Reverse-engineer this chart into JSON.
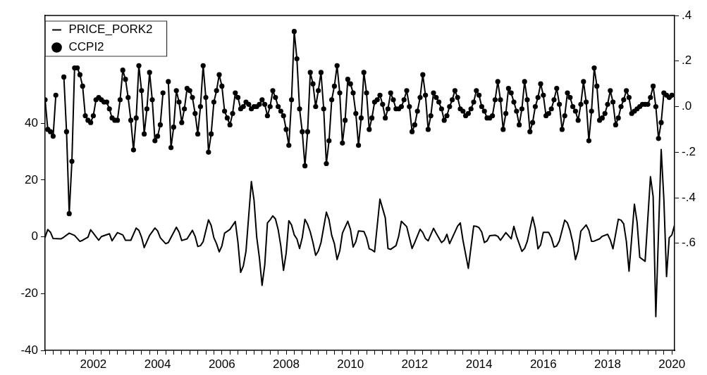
{
  "chart_data": {
    "type": "line",
    "x": [
      "2001-01",
      "2001-02",
      "2001-03",
      "2001-04",
      "2001-05",
      "2001-06",
      "2001-07",
      "2001-08",
      "2001-09",
      "2001-10",
      "2001-11",
      "2001-12",
      "2002-01",
      "2002-02",
      "2002-03",
      "2002-04",
      "2002-05",
      "2002-06",
      "2002-07",
      "2002-08",
      "2002-09",
      "2002-10",
      "2002-11",
      "2002-12",
      "2003-01",
      "2003-02",
      "2003-03",
      "2003-04",
      "2003-05",
      "2003-06",
      "2003-07",
      "2003-08",
      "2003-09",
      "2003-10",
      "2003-11",
      "2003-12",
      "2004-01",
      "2004-02",
      "2004-03",
      "2004-04",
      "2004-05",
      "2004-06",
      "2004-07",
      "2004-08",
      "2004-09",
      "2004-10",
      "2004-11",
      "2004-12",
      "2005-01",
      "2005-02",
      "2005-03",
      "2005-04",
      "2005-05",
      "2005-06",
      "2005-07",
      "2005-08",
      "2005-09",
      "2005-10",
      "2005-11",
      "2005-12",
      "2006-01",
      "2006-02",
      "2006-03",
      "2006-04",
      "2006-05",
      "2006-06",
      "2006-07",
      "2006-08",
      "2006-09",
      "2006-10",
      "2006-11",
      "2006-12",
      "2007-01",
      "2007-02",
      "2007-03",
      "2007-04",
      "2007-05",
      "2007-06",
      "2007-07",
      "2007-08",
      "2007-09",
      "2007-10",
      "2007-11",
      "2007-12",
      "2008-01",
      "2008-02",
      "2008-03",
      "2008-04",
      "2008-05",
      "2008-06",
      "2008-07",
      "2008-08",
      "2008-09",
      "2008-10",
      "2008-11",
      "2008-12",
      "2009-01",
      "2009-02",
      "2009-03",
      "2009-04",
      "2009-05",
      "2009-06",
      "2009-07",
      "2009-08",
      "2009-09",
      "2009-10",
      "2009-11",
      "2009-12",
      "2010-01",
      "2010-02",
      "2010-03",
      "2010-04",
      "2010-05",
      "2010-06",
      "2010-07",
      "2010-08",
      "2010-09",
      "2010-10",
      "2010-11",
      "2010-12",
      "2011-01",
      "2011-02",
      "2011-03",
      "2011-04",
      "2011-05",
      "2011-06",
      "2011-07",
      "2011-08",
      "2011-09",
      "2011-10",
      "2011-11",
      "2011-12",
      "2012-01",
      "2012-02",
      "2012-03",
      "2012-04",
      "2012-05",
      "2012-06",
      "2012-07",
      "2012-08",
      "2012-09",
      "2012-10",
      "2012-11",
      "2012-12",
      "2013-01",
      "2013-02",
      "2013-03",
      "2013-04",
      "2013-05",
      "2013-06",
      "2013-07",
      "2013-08",
      "2013-09",
      "2013-10",
      "2013-11",
      "2013-12",
      "2014-01",
      "2014-02",
      "2014-03",
      "2014-04",
      "2014-05",
      "2014-06",
      "2014-07",
      "2014-08",
      "2014-09",
      "2014-10",
      "2014-11",
      "2014-12",
      "2015-01",
      "2015-02",
      "2015-03",
      "2015-04",
      "2015-05",
      "2015-06",
      "2015-07",
      "2015-08",
      "2015-09",
      "2015-10",
      "2015-11",
      "2015-12",
      "2016-01",
      "2016-02",
      "2016-03",
      "2016-04",
      "2016-05",
      "2016-06",
      "2016-07",
      "2016-08",
      "2016-09",
      "2016-10",
      "2016-11",
      "2016-12",
      "2017-01",
      "2017-02",
      "2017-03",
      "2017-04",
      "2017-05",
      "2017-06",
      "2017-07",
      "2017-08",
      "2017-09",
      "2017-10",
      "2017-11",
      "2017-12",
      "2018-01",
      "2018-02",
      "2018-03",
      "2018-04",
      "2018-05",
      "2018-06",
      "2018-07",
      "2018-08",
      "2018-09",
      "2018-10",
      "2018-11",
      "2018-12",
      "2019-01",
      "2019-02",
      "2019-03",
      "2019-04",
      "2019-05",
      "2019-06",
      "2019-07",
      "2019-08",
      "2019-09",
      "2019-10",
      "2019-11",
      "2019-12",
      "2020-01",
      "2020-02",
      "2020-03",
      "2020-04",
      "2020-05",
      "2020-06",
      "2020-07"
    ],
    "series": [
      {
        "name": "PRICE_PORK2",
        "color": "#000000",
        "marker": "none",
        "x": [
          "2001-01",
          "2001-02",
          "2001-03",
          "2001-04",
          "2001-07",
          "2001-08",
          "2001-10",
          "2001-12",
          "2002-02",
          "2002-03",
          "2002-05",
          "2002-06",
          "2002-07",
          "2002-09",
          "2002-10",
          "2003-01",
          "2003-02",
          "2003-04",
          "2003-06",
          "2003-07",
          "2003-09",
          "2003-11",
          "2003-12",
          "2004-01",
          "2004-02",
          "2004-04",
          "2004-06",
          "2004-07",
          "2004-08",
          "2004-10",
          "2004-11",
          "2005-02",
          "2005-03",
          "2005-04",
          "2005-06",
          "2005-08",
          "2005-09",
          "2005-10",
          "2005-11",
          "2005-12",
          "2006-02",
          "2006-03",
          "2006-04",
          "2006-05",
          "2006-06",
          "2006-07",
          "2006-08",
          "2006-10",
          "2006-12",
          "2007-01",
          "2007-02",
          "2007-03",
          "2007-04",
          "2007-06",
          "2007-07",
          "2007-08",
          "2007-09",
          "2007-10",
          "2007-11",
          "2007-12",
          "2008-01",
          "2008-02",
          "2008-03",
          "2008-04",
          "2008-05",
          "2008-06",
          "2008-07",
          "2008-08",
          "2008-09",
          "2008-10",
          "2008-11",
          "2008-12",
          "2009-01",
          "2009-02",
          "2009-03",
          "2009-04",
          "2009-05",
          "2009-06",
          "2009-07",
          "2009-08",
          "2009-10",
          "2009-11",
          "2009-12",
          "2010-01",
          "2010-02",
          "2010-03",
          "2010-04",
          "2010-06",
          "2010-07",
          "2010-08",
          "2010-09",
          "2010-10",
          "2010-12",
          "2011-01",
          "2011-02",
          "2011-03",
          "2011-04",
          "2011-06",
          "2011-08",
          "2011-09",
          "2011-10",
          "2011-12",
          "2012-01",
          "2012-02",
          "2012-04",
          "2012-05",
          "2012-06",
          "2012-07",
          "2012-09",
          "2012-10",
          "2012-11",
          "2012-12",
          "2013-02",
          "2013-03",
          "2013-05",
          "2013-06",
          "2013-07",
          "2013-08",
          "2013-11",
          "2013-12",
          "2014-01",
          "2014-03",
          "2014-05",
          "2014-06",
          "2014-07",
          "2014-08",
          "2014-09",
          "2014-10",
          "2014-11",
          "2015-01",
          "2015-02",
          "2015-03",
          "2015-05",
          "2015-07",
          "2015-08",
          "2015-09",
          "2015-11",
          "2015-12",
          "2016-01",
          "2016-03",
          "2016-04",
          "2016-05",
          "2016-06",
          "2016-07",
          "2016-09",
          "2016-10",
          "2016-11",
          "2016-12",
          "2017-01",
          "2017-03",
          "2017-04",
          "2017-05",
          "2017-06",
          "2017-07",
          "2017-08",
          "2017-09",
          "2017-11",
          "2017-12",
          "2018-01",
          "2018-02",
          "2018-04",
          "2018-05",
          "2018-07",
          "2018-08",
          "2018-09",
          "2018-11",
          "2018-12",
          "2019-01",
          "2019-02",
          "2019-03",
          "2019-05",
          "2019-06",
          "2019-07",
          "2019-09",
          "2019-11",
          "2019-12",
          "2020-01",
          "2020-03",
          "2020-04",
          "2020-05",
          "2020-06",
          "2020-07",
          "2020-08"
        ],
        "values": [
          -0.1,
          2.6,
          1.6,
          -0.6,
          -0.7,
          -0.1,
          1.3,
          0.5,
          -1.6,
          -1.2,
          -0.1,
          2.5,
          1.3,
          -1.2,
          0.1,
          1.1,
          -1.4,
          1.5,
          0.7,
          -1.2,
          -1.2,
          3.1,
          2.3,
          -0.1,
          -3.8,
          0.5,
          3.1,
          2.1,
          -0.3,
          -2.4,
          -2.0,
          3.4,
          1.7,
          -1.3,
          -0.7,
          2.3,
          0.2,
          -3.4,
          -3.1,
          -1.7,
          6.0,
          4.0,
          -0.3,
          -2.4,
          -5.3,
          -3.2,
          1.3,
          2.6,
          5.4,
          -2.0,
          -12.5,
          -10.3,
          -5.0,
          19.5,
          12.9,
          -0.1,
          -7.4,
          -17.1,
          -9.9,
          4.9,
          6.0,
          7.4,
          6.3,
          2.6,
          -3.2,
          -11.8,
          -5.7,
          5.7,
          4.2,
          0.7,
          -0.7,
          -4.1,
          -0.3,
          6.2,
          4.4,
          1.7,
          -2.0,
          -6.5,
          -5.0,
          -2.0,
          8.7,
          6.0,
          0.5,
          -2.4,
          -8.0,
          -5.0,
          1.3,
          5.5,
          2.6,
          -3.6,
          -1.7,
          2.1,
          1.9,
          -0.3,
          -4.2,
          -4.6,
          -5.3,
          13.3,
          6.7,
          -4.1,
          -4.4,
          -3.1,
          0.2,
          5.5,
          3.6,
          -0.3,
          -4.1,
          -2.0,
          2.7,
          1.5,
          -0.6,
          -1.4,
          3.0,
          1.3,
          -2.0,
          -1.2,
          0.9,
          -2.4,
          3.8,
          4.9,
          -1.2,
          -11.1,
          3.8,
          3.7,
          3.2,
          1.7,
          -2.0,
          -1.4,
          0.4,
          0.6,
          0.2,
          -1.2,
          1.5,
          -0.7,
          3.7,
          0.2,
          -5.1,
          -4.1,
          -1.6,
          7.0,
          3.0,
          -4.2,
          -2.8,
          1.6,
          1.6,
          -0.3,
          -3.6,
          -3.2,
          -1.4,
          5.9,
          4.9,
          2.1,
          -2.0,
          -8.0,
          -4.9,
          2.0,
          4.2,
          2.3,
          -1.6,
          -1.5,
          -0.7,
          0.2,
          0.9,
          -1.1,
          -4.2,
          6.2,
          5.9,
          4.6,
          -1.6,
          -12.1,
          11.5,
          5.2,
          -7.2,
          -8.6,
          21.2,
          14.2,
          -28.1,
          30.8,
          13.3,
          -14.0,
          -0.3,
          0.7,
          4.2
        ]
      },
      {
        "name": "CCPI2",
        "color": "#000000",
        "marker": "circle",
        "axis": "y2",
        "values": [
          0.03,
          -0.1,
          -0.11,
          -0.13,
          0.05,
          null,
          null,
          0.13,
          -0.11,
          -0.47,
          -0.24,
          0.17,
          0.17,
          0.14,
          0.09,
          -0.04,
          -0.06,
          -0.07,
          -0.04,
          0.03,
          0.04,
          0.03,
          0.02,
          0.02,
          -0.01,
          -0.05,
          -0.06,
          -0.06,
          0.03,
          0.16,
          0.12,
          0.04,
          -0.06,
          -0.19,
          -0.05,
          0.18,
          0.07,
          -0.12,
          -0.01,
          0.15,
          0.03,
          -0.15,
          -0.13,
          -0.08,
          0.06,
          null,
          0.11,
          -0.18,
          -0.09,
          0.07,
          0.02,
          -0.07,
          -0.01,
          0.08,
          0.07,
          0.04,
          -0.03,
          -0.12,
          0.0,
          0.18,
          0.04,
          -0.2,
          -0.12,
          0.02,
          0.07,
          0.14,
          0.09,
          -0.02,
          -0.05,
          -0.08,
          -0.03,
          0.06,
          0.04,
          -0.01,
          0.0,
          0.02,
          0.01,
          -0.01,
          0.0,
          0.0,
          0.01,
          0.03,
          0.01,
          -0.04,
          0.0,
          0.07,
          0.04,
          0.0,
          -0.02,
          -0.04,
          -0.1,
          -0.17,
          0.03,
          0.33,
          0.21,
          -0.01,
          -0.11,
          -0.26,
          -0.11,
          0.15,
          0.1,
          0.0,
          0.07,
          0.15,
          -0.01,
          -0.25,
          -0.15,
          0.03,
          0.09,
          0.18,
          0.06,
          -0.16,
          -0.06,
          0.12,
          0.1,
          0.06,
          -0.03,
          -0.17,
          -0.05,
          0.15,
          0.06,
          -0.1,
          -0.05,
          0.02,
          0.03,
          0.05,
          0.01,
          -0.05,
          -0.01,
          0.06,
          0.03,
          -0.01,
          -0.01,
          0.0,
          0.03,
          0.07,
          0.0,
          -0.11,
          -0.08,
          -0.02,
          0.04,
          0.14,
          0.05,
          -0.1,
          -0.04,
          0.06,
          0.04,
          0.02,
          -0.01,
          -0.06,
          -0.04,
          0.0,
          0.03,
          0.07,
          0.04,
          -0.01,
          -0.02,
          -0.04,
          -0.03,
          -0.01,
          0.02,
          0.07,
          0.05,
          0.0,
          -0.02,
          -0.05,
          -0.05,
          -0.04,
          0.03,
          0.11,
          0.03,
          -0.1,
          -0.03,
          0.08,
          0.06,
          0.02,
          -0.02,
          -0.08,
          -0.01,
          0.11,
          0.03,
          -0.11,
          -0.07,
          0.0,
          0.04,
          0.1,
          0.05,
          -0.04,
          -0.03,
          -0.01,
          0.03,
          0.08,
          0.01,
          -0.1,
          -0.04,
          0.06,
          0.04,
          0.0,
          -0.02,
          -0.06,
          0.01,
          0.11,
          0.02,
          -0.15,
          -0.02,
          0.17,
          0.09,
          -0.06,
          -0.05,
          -0.03,
          0.01,
          0.07,
          0.02,
          -0.08,
          -0.05,
          0.0,
          0.03,
          0.07,
          0.04,
          -0.03,
          -0.02,
          -0.01,
          0.0,
          0.01,
          0.01,
          0.01,
          0.04,
          0.09,
          0.0,
          -0.14,
          -0.07,
          0.06,
          0.05,
          0.04,
          0.05
        ]
      }
    ],
    "xlim": [
      "2001-01",
      "2020-08"
    ],
    "xticks": [
      {
        "value": "2001-01",
        "label": null
      },
      {
        "value": "2001-04",
        "label": null
      },
      {
        "value": "2001-07",
        "label": null
      },
      {
        "value": "2001-10",
        "label": null
      },
      {
        "value": "2002-01",
        "label": null
      },
      {
        "value": "2002-04",
        "label": null
      },
      {
        "value": "2002-07",
        "label": "2002"
      },
      {
        "value": "2002-10",
        "label": null
      },
      {
        "value": "2003-01",
        "label": null
      },
      {
        "value": "2003-04",
        "label": null
      },
      {
        "value": "2003-07",
        "label": null
      },
      {
        "value": "2003-10",
        "label": null
      },
      {
        "value": "2004-01",
        "label": null
      },
      {
        "value": "2004-04",
        "label": null
      },
      {
        "value": "2004-07",
        "label": "2004"
      },
      {
        "value": "2004-10",
        "label": null
      },
      {
        "value": "2005-01",
        "label": null
      },
      {
        "value": "2005-04",
        "label": null
      },
      {
        "value": "2005-07",
        "label": null
      },
      {
        "value": "2005-10",
        "label": null
      },
      {
        "value": "2006-01",
        "label": null
      },
      {
        "value": "2006-04",
        "label": null
      },
      {
        "value": "2006-07",
        "label": "2006"
      },
      {
        "value": "2006-10",
        "label": null
      },
      {
        "value": "2007-01",
        "label": null
      },
      {
        "value": "2007-04",
        "label": null
      },
      {
        "value": "2007-07",
        "label": null
      },
      {
        "value": "2007-10",
        "label": null
      },
      {
        "value": "2008-01",
        "label": null
      },
      {
        "value": "2008-04",
        "label": null
      },
      {
        "value": "2008-07",
        "label": "2008"
      },
      {
        "value": "2008-10",
        "label": null
      },
      {
        "value": "2009-01",
        "label": null
      },
      {
        "value": "2009-04",
        "label": null
      },
      {
        "value": "2009-07",
        "label": null
      },
      {
        "value": "2009-10",
        "label": null
      },
      {
        "value": "2010-01",
        "label": null
      },
      {
        "value": "2010-04",
        "label": null
      },
      {
        "value": "2010-07",
        "label": "2010"
      },
      {
        "value": "2010-10",
        "label": null
      },
      {
        "value": "2011-01",
        "label": null
      },
      {
        "value": "2011-04",
        "label": null
      },
      {
        "value": "2011-07",
        "label": null
      },
      {
        "value": "2011-10",
        "label": null
      },
      {
        "value": "2012-01",
        "label": null
      },
      {
        "value": "2012-04",
        "label": null
      },
      {
        "value": "2012-07",
        "label": "2012"
      },
      {
        "value": "2012-10",
        "label": null
      },
      {
        "value": "2013-01",
        "label": null
      },
      {
        "value": "2013-04",
        "label": null
      },
      {
        "value": "2013-07",
        "label": null
      },
      {
        "value": "2013-10",
        "label": null
      },
      {
        "value": "2014-01",
        "label": null
      },
      {
        "value": "2014-04",
        "label": null
      },
      {
        "value": "2014-07",
        "label": "2014"
      },
      {
        "value": "2014-10",
        "label": null
      },
      {
        "value": "2015-01",
        "label": null
      },
      {
        "value": "2015-04",
        "label": null
      },
      {
        "value": "2015-07",
        "label": null
      },
      {
        "value": "2015-10",
        "label": null
      },
      {
        "value": "2016-01",
        "label": null
      },
      {
        "value": "2016-04",
        "label": null
      },
      {
        "value": "2016-07",
        "label": "2016"
      },
      {
        "value": "2016-10",
        "label": null
      },
      {
        "value": "2017-01",
        "label": null
      },
      {
        "value": "2017-04",
        "label": null
      },
      {
        "value": "2017-07",
        "label": null
      },
      {
        "value": "2017-10",
        "label": null
      },
      {
        "value": "2018-01",
        "label": null
      },
      {
        "value": "2018-04",
        "label": null
      },
      {
        "value": "2018-07",
        "label": "2018"
      },
      {
        "value": "2018-10",
        "label": null
      },
      {
        "value": "2019-01",
        "label": null
      },
      {
        "value": "2019-04",
        "label": null
      },
      {
        "value": "2019-07",
        "label": null
      },
      {
        "value": "2019-10",
        "label": null
      },
      {
        "value": "2020-01",
        "label": null
      },
      {
        "value": "2020-04",
        "label": null
      },
      {
        "value": "2020-07",
        "label": "2020"
      }
    ],
    "ylim": [
      -40,
      78
    ],
    "yticks": [
      -40,
      -20,
      0,
      20,
      40
    ],
    "y2lim": [
      -1.07,
      0.4
    ],
    "y2ticks": [
      {
        "value": -0.6,
        "label": "-.6"
      },
      {
        "value": -0.4,
        "label": "-.4"
      },
      {
        "value": -0.2,
        "label": "-.2"
      },
      {
        "value": 0,
        "label": ".0"
      },
      {
        "value": 0.2,
        "label": ".2"
      },
      {
        "value": 0.4,
        "label": ".4"
      }
    ],
    "legend": "top left",
    "line_style": "solid"
  }
}
